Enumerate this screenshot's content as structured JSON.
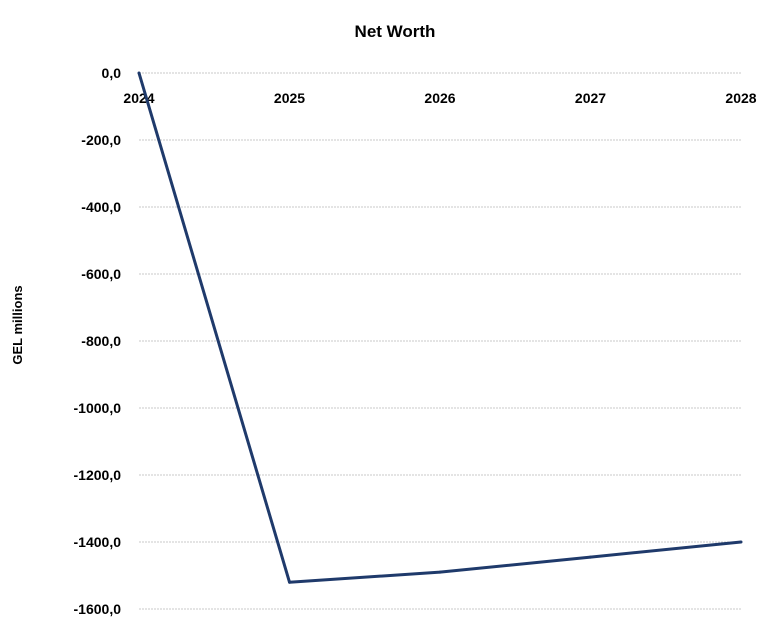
{
  "chart_data": {
    "type": "line",
    "title": "Net Worth",
    "xlabel": "",
    "ylabel": "GEL millions",
    "x": [
      "2024",
      "2025",
      "2026",
      "2027",
      "2028"
    ],
    "yticks": [
      "0,0",
      "-200,0",
      "-400,0",
      "-600,0",
      "-800,0",
      "-1000,0",
      "-1200,0",
      "-1400,0",
      "-1600,0"
    ],
    "ylim": [
      -1600,
      0
    ],
    "grid": true,
    "x_axis_position": "top",
    "series": [
      {
        "values": [
          0,
          -1520,
          -1490,
          -1445,
          -1400
        ],
        "color": "#1f3a6b"
      }
    ],
    "gridline_color": "#c8c8c8"
  }
}
